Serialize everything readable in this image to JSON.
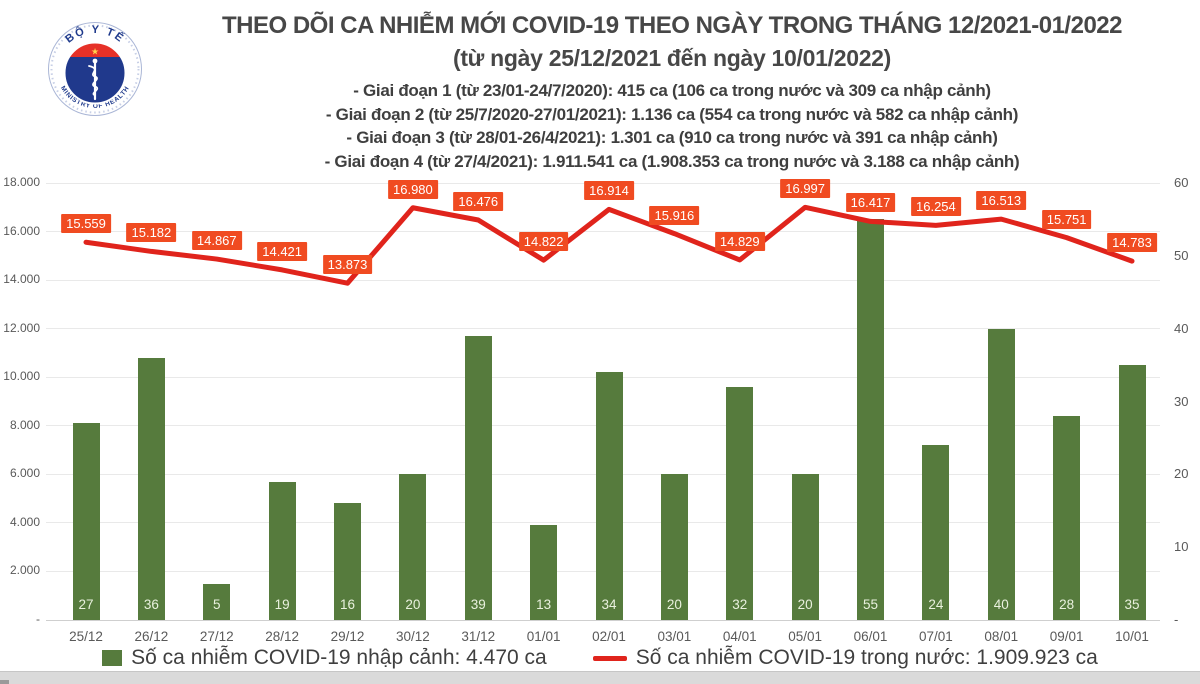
{
  "logo": {
    "top_text": "BỘ Y TẾ",
    "bottom_text": "MINISTRY OF HEALTH",
    "star": "★"
  },
  "header": {
    "title": "THEO DÕI CA NHIỄM MỚI COVID-19 THEO NGÀY TRONG THÁNG 12/2021-01/2022",
    "subtitle": "(từ ngày 25/12/2021 đến ngày 10/01/2022)",
    "phases": [
      "- Giai đoạn 1 (từ 23/01-24/7/2020): 415 ca (106 ca trong nước và 309 ca nhập cảnh)",
      "- Giai đoạn 2 (từ 25/7/2020-27/01/2021): 1.136 ca (554 ca trong nước và 582 ca nhập cảnh)",
      "- Giai đoạn 3 (từ 28/01-26/4/2021): 1.301 ca (910 ca trong nước và 391 ca nhập cảnh)",
      "- Giai đoạn 4 (từ 27/4/2021): 1.911.541 ca (1.908.353 ca trong nước và 3.188 ca nhập cảnh)"
    ]
  },
  "chart_data": {
    "type": "bar+line",
    "categories": [
      "25/12",
      "26/12",
      "27/12",
      "28/12",
      "29/12",
      "30/12",
      "31/12",
      "01/01",
      "02/01",
      "03/01",
      "04/01",
      "05/01",
      "06/01",
      "07/01",
      "08/01",
      "09/01",
      "10/01"
    ],
    "series": [
      {
        "name": "Số ca nhiễm COVID-19 nhập cảnh",
        "type": "bar",
        "axis": "right",
        "color": "#567B3D",
        "values": [
          27,
          36,
          5,
          19,
          16,
          20,
          39,
          13,
          34,
          20,
          32,
          20,
          55,
          24,
          40,
          28,
          35
        ]
      },
      {
        "name": "Số ca nhiễm COVID-19 trong nước",
        "type": "line",
        "axis": "left",
        "color": "#E0241C",
        "values": [
          15559,
          15182,
          14867,
          14421,
          13873,
          16980,
          16476,
          14822,
          16914,
          15916,
          14829,
          16997,
          16417,
          16254,
          16513,
          15751,
          14783
        ],
        "labels": [
          "15.559",
          "15.182",
          "14.867",
          "14.421",
          "13.873",
          "16.980",
          "16.476",
          "14.822",
          "16.914",
          "15.916",
          "14.829",
          "16.997",
          "16.417",
          "16.254",
          "16.513",
          "15.751",
          "14.783"
        ]
      }
    ],
    "left_axis": {
      "min": 0,
      "max": 18000,
      "ticks": [
        {
          "label": "18.000",
          "value": 18000
        },
        {
          "label": "16.000",
          "value": 16000
        },
        {
          "label": "14.000",
          "value": 14000
        },
        {
          "label": "12.000",
          "value": 12000
        },
        {
          "label": "10.000",
          "value": 10000
        },
        {
          "label": "8.000",
          "value": 8000
        },
        {
          "label": "6.000",
          "value": 6000
        },
        {
          "label": "4.000",
          "value": 4000
        },
        {
          "label": "2.000",
          "value": 2000
        },
        {
          "label": "-",
          "value": 0
        }
      ]
    },
    "right_axis": {
      "min": 0,
      "max": 60,
      "ticks": [
        {
          "label": "60",
          "value": 60
        },
        {
          "label": "50",
          "value": 50
        },
        {
          "label": "40",
          "value": 40
        },
        {
          "label": "30",
          "value": 30
        },
        {
          "label": "20",
          "value": 20
        },
        {
          "label": "10",
          "value": 10
        },
        {
          "label": "-",
          "value": 0
        }
      ]
    },
    "grid": true,
    "legend_position": "bottom"
  },
  "legend": {
    "items": [
      {
        "label": "Số ca nhiễm COVID-19 nhập cảnh: 4.470 ca",
        "color": "#567B3D",
        "marker": "square"
      },
      {
        "label": "Số ca nhiễm COVID-19 trong nước: 1.909.923 ca",
        "color": "#E0241C",
        "marker": "line"
      }
    ]
  },
  "colors": {
    "bar_green": "#567B3D",
    "line_red": "#E0241C",
    "label_box_orange": "#F04B21",
    "title_text": "#474747",
    "axis_text": "#595959",
    "gridline": "#E9E9E9",
    "baseline": "#CFCFCF",
    "bar_label_text": "#E9F1DE",
    "logo_navy": "#1F3A8C",
    "logo_red": "#E63128",
    "logo_star_yellow": "#FFD34D"
  }
}
